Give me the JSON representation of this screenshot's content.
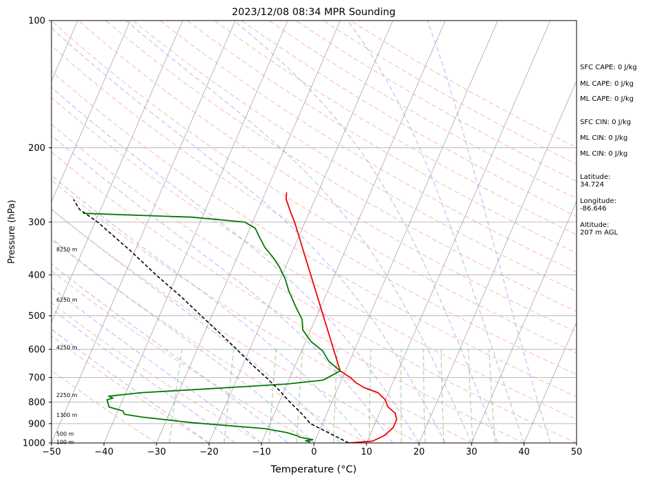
{
  "chart_data": {
    "type": "line",
    "title": "2023/12/08 08:34 MPR Sounding",
    "xlabel": "Temperature (°C)",
    "ylabel": "Pressure (hPa)",
    "xlim": [
      -50,
      50
    ],
    "ylim": [
      1000,
      100
    ],
    "y_scale": "log",
    "skew": "skew-T log-P",
    "x_ticks": [
      "−50",
      "−40",
      "−30",
      "−20",
      "−10",
      "0",
      "10",
      "20",
      "30",
      "40",
      "50"
    ],
    "y_ticks": [
      "100",
      "200",
      "300",
      "400",
      "500",
      "600",
      "700",
      "800",
      "900",
      "1000"
    ],
    "height_labels": [
      {
        "text": "8250 m",
        "p": 348
      },
      {
        "text": "6250 m",
        "p": 458
      },
      {
        "text": "4250 m",
        "p": 594
      },
      {
        "text": "2250 m",
        "p": 770
      },
      {
        "text": "1300 m",
        "p": 858
      },
      {
        "text": "500 m",
        "p": 950
      },
      {
        "text": "100 m",
        "p": 995
      }
    ],
    "colors": {
      "temperature": "#ee0000",
      "dewpoint": "#007700",
      "parcel": "#000000",
      "dry_adiabats": "#ff9999",
      "moist_adiabats": "#9999ff",
      "mixing_ratio": "#77bb77",
      "isotherms": "#888888"
    },
    "series": [
      {
        "points": [
          [
            6.6,
            1000
          ],
          [
            11.0,
            990
          ],
          [
            12.8,
            960
          ],
          [
            13.8,
            920
          ],
          [
            13.8,
            880
          ],
          [
            13.0,
            850
          ],
          [
            11.0,
            820
          ],
          [
            10.0,
            790
          ],
          [
            8.0,
            760
          ],
          [
            5.0,
            740
          ],
          [
            3.0,
            720
          ],
          [
            1.5,
            700
          ],
          [
            0.5,
            690
          ],
          [
            -1.0,
            675
          ],
          [
            -22.0,
            300
          ],
          [
            -23.5,
            285
          ],
          [
            -25.5,
            265
          ],
          [
            -26.0,
            255
          ]
        ]
      },
      {
        "points": [
          [
            -0.8,
            995
          ],
          [
            -1.8,
            988
          ],
          [
            -0.5,
            982
          ],
          [
            -3.0,
            970
          ],
          [
            -4.0,
            960
          ],
          [
            -6.0,
            945
          ],
          [
            -10.5,
            925
          ],
          [
            -25.0,
            895
          ],
          [
            -35.0,
            868
          ],
          [
            -38.5,
            855
          ],
          [
            -39.0,
            840
          ],
          [
            -42.0,
            822
          ],
          [
            -43.0,
            790
          ],
          [
            -42.0,
            783
          ],
          [
            -43.0,
            775
          ],
          [
            -37.0,
            760
          ],
          [
            -25.0,
            745
          ],
          [
            -10.0,
            725
          ],
          [
            -3.5,
            710
          ],
          [
            -1.0,
            675
          ],
          [
            -4.0,
            640
          ],
          [
            -6.0,
            605
          ],
          [
            -9.0,
            575
          ],
          [
            -11.5,
            540
          ],
          [
            -12.5,
            510
          ],
          [
            -14.5,
            480
          ],
          [
            -17.5,
            435
          ],
          [
            -19.0,
            410
          ],
          [
            -21.0,
            385
          ],
          [
            -23.0,
            365
          ],
          [
            -25.5,
            345
          ],
          [
            -27.5,
            325
          ],
          [
            -29.0,
            310
          ],
          [
            -31.5,
            300
          ],
          [
            -42.0,
            292
          ],
          [
            -63.0,
            286
          ]
        ]
      },
      {
        "style": "dashed",
        "points": [
          [
            6.6,
            1000
          ],
          [
            2.3,
            950
          ],
          [
            -2.3,
            900
          ],
          [
            -4.9,
            850
          ],
          [
            -8.0,
            800
          ],
          [
            -11.0,
            750
          ],
          [
            -14.5,
            700
          ],
          [
            -18.5,
            650
          ],
          [
            -22.5,
            600
          ],
          [
            -27.0,
            550
          ],
          [
            -32.0,
            500
          ],
          [
            -37.5,
            450
          ],
          [
            -44.0,
            400
          ],
          [
            -51.0,
            350
          ],
          [
            -59.5,
            300
          ],
          [
            -64.0,
            280
          ],
          [
            -66.0,
            265
          ]
        ]
      }
    ]
  },
  "annotations": {
    "sfc_cape": "SFC CAPE: 0 J/kg",
    "ml_cape_1": "ML CAPE: 0 J/kg",
    "ml_cape_2": "ML CAPE: 0 J/kg",
    "sfc_cin": "SFC CIN: 0 J/kg",
    "ml_cin_1": "ML CIN: 0 J/kg",
    "ml_cin_2": "ML CIN: 0 J/kg",
    "latitude": "Latitude:\n34.724",
    "longitude": "Longitude:\n-86.646",
    "altitude": "Altitude:\n207 m AGL"
  }
}
